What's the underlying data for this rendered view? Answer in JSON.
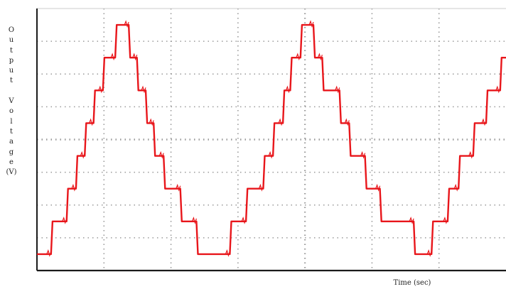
{
  "chart_data": {
    "type": "line",
    "title": "",
    "xlabel": "Time (sec)",
    "ylabel": "Output Voltage (V)",
    "ylabel_lines": [
      "O",
      "u",
      "t",
      "p",
      "u",
      "t",
      "",
      "V",
      "o",
      "l",
      "t",
      "a",
      "g",
      "e",
      "(V)"
    ],
    "grid": true,
    "grid_divisions": {
      "x": 7,
      "y": 8
    },
    "series": [
      {
        "color": "#e8161b",
        "description": "staircase multilevel waveform, 15 levels, ~1.4 periods",
        "x": [
          0,
          0.48,
          0.53,
          1.01,
          1.06,
          1.33,
          1.38,
          1.63,
          1.68,
          1.93,
          1.98,
          2.25,
          2.3,
          2.67,
          2.72,
          3.13,
          3.18,
          3.41,
          3.46,
          3.71,
          3.76,
          3.98,
          4.03,
          4.32,
          4.37,
          4.89,
          4.94,
          5.44,
          5.49,
          6.58,
          6.63,
          7.13,
          7.18,
          7.72,
          7.77,
          8.05,
          8.1,
          8.39,
          8.44,
          8.64,
          8.69,
          8.99,
          9.04,
          9.43,
          9.48,
          9.73,
          9.78,
          10.32,
          10.37,
          10.65,
          10.7,
          11.19,
          11.24,
          11.7,
          11.75,
          12.85,
          12.9,
          13.46,
          13.51,
          14.01,
          14.06,
          14.38,
          14.43,
          14.88,
          14.93,
          15.32,
          15.37,
          15.8,
          15.85,
          16
        ],
        "y": [
          -7,
          -7,
          -5,
          -5,
          -3,
          -3,
          -1,
          -1,
          1,
          1,
          3,
          3,
          5,
          5,
          7,
          7,
          5,
          5,
          3,
          3,
          1,
          1,
          -1,
          -1,
          -3,
          -3,
          -5,
          -5,
          -7,
          -7,
          -5,
          -5,
          -3,
          -3,
          -1,
          -1,
          1,
          1,
          3,
          3,
          5,
          5,
          7,
          7,
          5,
          5,
          3,
          3,
          1,
          1,
          -1,
          -1,
          -3,
          -3,
          -5,
          -5,
          -7,
          -7,
          -5,
          -5,
          -3,
          -3,
          -1,
          -1,
          1,
          1,
          3,
          3,
          5,
          5
        ]
      }
    ],
    "xlim": [
      0,
      16
    ],
    "ylim": [
      -8,
      8
    ],
    "colors": {
      "trace": "#e8161b",
      "grid": "#9a9a9a",
      "axis": "#1a1a1a",
      "frame": "#cccccc"
    }
  }
}
